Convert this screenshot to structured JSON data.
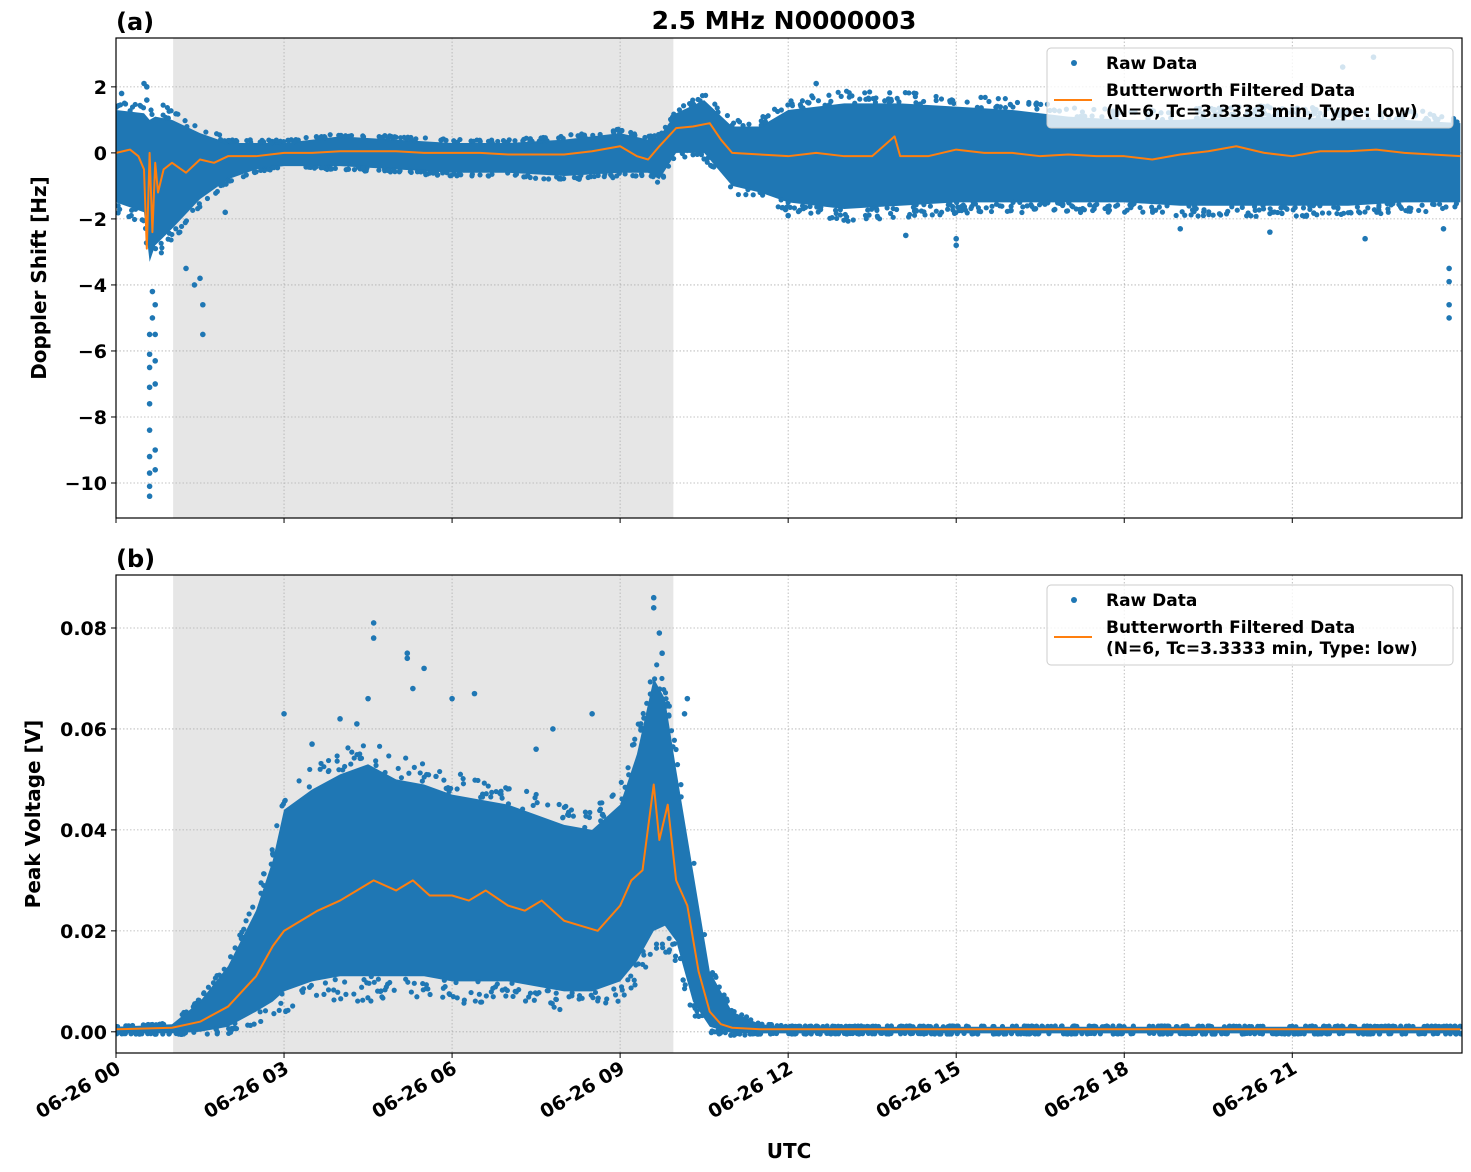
{
  "title": "2.5 MHz N0000003",
  "xlabel": "UTC",
  "x_tick_labels": [
    "06-26 00",
    "06-26 03",
    "06-26 06",
    "06-26 09",
    "06-26 12",
    "06-26 15",
    "06-26 18",
    "06-26 21"
  ],
  "x_tick_hours": [
    0,
    3,
    6,
    9,
    12,
    15,
    18,
    21
  ],
  "colors": {
    "raw": "#1f77b4",
    "filtered": "#ff7f0e",
    "shade": "#e6e6e6"
  },
  "legend": {
    "raw_label": "Raw Data",
    "filtered_label_line1": "Butterworth Filtered Data",
    "filtered_label_line2": "(N=6, Tc=3.3333 min, Type: low)"
  },
  "chart_data": [
    {
      "panel_label": "(a)",
      "type": "scatter+line",
      "ylabel": "Doppler Shift [Hz]",
      "xlim_hours": [
        0,
        24.03
      ],
      "ylim": [
        -11.06,
        3.48
      ],
      "yticks": [
        2,
        0,
        -2,
        -4,
        -6,
        -8,
        -10
      ],
      "ytick_labels": [
        "2",
        "0",
        "−2",
        "−4",
        "−6",
        "−8",
        "−10"
      ],
      "grid": true,
      "legend_position": "top-right",
      "shaded_interval_hours": [
        1.02,
        9.95
      ],
      "filtered": {
        "x": [
          0,
          0.25,
          0.4,
          0.5,
          0.55,
          0.6,
          0.65,
          0.7,
          0.75,
          0.85,
          1,
          1.25,
          1.5,
          1.75,
          2,
          2.5,
          3,
          3.5,
          4,
          4.5,
          5,
          5.5,
          6,
          6.5,
          7,
          7.5,
          8,
          8.5,
          9,
          9.3,
          9.5,
          9.7,
          10,
          10.3,
          10.6,
          10.8,
          11,
          11.5,
          12,
          12.5,
          13,
          13.5,
          13.9,
          14,
          14.5,
          15,
          15.5,
          16,
          16.5,
          17,
          17.5,
          18,
          18.5,
          19,
          19.5,
          20,
          20.5,
          21,
          21.5,
          22,
          22.5,
          23,
          23.5,
          24
        ],
        "y": [
          0,
          0.1,
          -0.1,
          -0.5,
          -2.9,
          0,
          -2.4,
          -0.3,
          -1.2,
          -0.5,
          -0.3,
          -0.6,
          -0.2,
          -0.3,
          -0.1,
          -0.1,
          0,
          0,
          0.05,
          0.05,
          0.05,
          0,
          0,
          0,
          -0.05,
          -0.05,
          -0.05,
          0.05,
          0.2,
          -0.1,
          -0.2,
          0.2,
          0.75,
          0.8,
          0.9,
          0.4,
          0,
          -0.05,
          -0.1,
          0,
          -0.1,
          -0.1,
          0.5,
          -0.1,
          -0.1,
          0.1,
          0,
          0,
          -0.1,
          -0.05,
          -0.1,
          -0.1,
          -0.2,
          -0.05,
          0.05,
          0.2,
          0,
          -0.1,
          0.05,
          0.05,
          0.1,
          0,
          -0.05,
          -0.1
        ]
      },
      "raw_envelope": {
        "x": [
          0,
          0.5,
          0.6,
          0.7,
          1,
          1.5,
          2,
          2.5,
          3,
          4,
          5,
          6,
          7,
          8,
          9,
          9.5,
          9.7,
          10,
          10.5,
          11,
          11.5,
          12,
          13,
          14,
          15,
          16,
          17,
          18,
          19,
          20,
          21,
          22,
          23,
          24
        ],
        "upper": [
          1.3,
          1.2,
          1.0,
          1.1,
          1.0,
          0.6,
          0.3,
          0.3,
          0.3,
          0.5,
          0.4,
          0.3,
          0.3,
          0.4,
          0.6,
          0.4,
          0.5,
          1.2,
          1.6,
          0.8,
          0.8,
          1.3,
          1.5,
          1.5,
          1.4,
          1.3,
          1.1,
          1.0,
          1.0,
          1.1,
          1.1,
          1.0,
          1.0,
          0.9
        ],
        "lower": [
          -1.5,
          -1.8,
          -3.3,
          -2.8,
          -2.3,
          -1.4,
          -0.8,
          -0.5,
          -0.4,
          -0.4,
          -0.5,
          -0.6,
          -0.6,
          -0.7,
          -0.6,
          -0.6,
          -0.8,
          0,
          0,
          -1.0,
          -1.2,
          -1.5,
          -1.7,
          -1.6,
          -1.5,
          -1.5,
          -1.5,
          -1.5,
          -1.6,
          -1.6,
          -1.6,
          -1.6,
          -1.5,
          -1.5
        ]
      },
      "raw_outliers": [
        [
          0.6,
          -10.4
        ],
        [
          0.6,
          -10.1
        ],
        [
          0.6,
          -9.7
        ],
        [
          0.6,
          -9.2
        ],
        [
          0.6,
          -8.4
        ],
        [
          0.6,
          -7.6
        ],
        [
          0.6,
          -7.1
        ],
        [
          0.6,
          -6.5
        ],
        [
          0.6,
          -6.1
        ],
        [
          0.6,
          -5.5
        ],
        [
          0.65,
          -5.0
        ],
        [
          0.7,
          -9.0
        ],
        [
          0.7,
          -9.6
        ],
        [
          0.7,
          -7.0
        ],
        [
          0.7,
          -6.3
        ],
        [
          0.7,
          -5.5
        ],
        [
          0.7,
          -4.6
        ],
        [
          0.65,
          -4.2
        ],
        [
          0.55,
          2.0
        ],
        [
          0.55,
          1.6
        ],
        [
          0.1,
          1.8
        ],
        [
          1.55,
          -5.5
        ],
        [
          1.55,
          -4.6
        ],
        [
          1.5,
          -3.8
        ],
        [
          1.4,
          -4.0
        ],
        [
          1.25,
          -3.5
        ],
        [
          1.95,
          -1.8
        ],
        [
          0.5,
          2.1
        ],
        [
          12.0,
          -1.9
        ],
        [
          12.5,
          2.1
        ],
        [
          14.1,
          -2.5
        ],
        [
          15.0,
          -2.8
        ],
        [
          15.0,
          -2.6
        ],
        [
          19.0,
          -2.3
        ],
        [
          21.9,
          2.6
        ],
        [
          22.3,
          -2.6
        ],
        [
          22.45,
          2.9
        ],
        [
          23.8,
          -3.5
        ],
        [
          23.8,
          -3.9
        ],
        [
          23.8,
          -4.6
        ],
        [
          23.8,
          -5.0
        ],
        [
          23.7,
          -2.3
        ],
        [
          20.6,
          -2.4
        ]
      ]
    },
    {
      "panel_label": "(b)",
      "type": "scatter+line",
      "ylabel": "Peak Voltage [V]",
      "xlim_hours": [
        0,
        24.03
      ],
      "ylim": [
        -0.0042,
        0.0905
      ],
      "yticks": [
        0.08,
        0.06,
        0.04,
        0.02,
        0.0
      ],
      "ytick_labels": [
        "0.08",
        "0.06",
        "0.04",
        "0.02",
        "0.00"
      ],
      "grid": true,
      "legend_position": "top-right",
      "shaded_interval_hours": [
        1.02,
        9.95
      ],
      "filtered": {
        "x": [
          0,
          1,
          1.5,
          2,
          2.5,
          2.8,
          3,
          3.3,
          3.6,
          4,
          4.3,
          4.6,
          5,
          5.3,
          5.6,
          6,
          6.3,
          6.6,
          7,
          7.3,
          7.6,
          8,
          8.3,
          8.6,
          9,
          9.2,
          9.4,
          9.6,
          9.7,
          9.85,
          10,
          10.2,
          10.4,
          10.6,
          10.8,
          11,
          11.5,
          12,
          24
        ],
        "y": [
          0.0005,
          0.0008,
          0.002,
          0.005,
          0.011,
          0.017,
          0.02,
          0.022,
          0.024,
          0.026,
          0.028,
          0.03,
          0.028,
          0.03,
          0.027,
          0.027,
          0.026,
          0.028,
          0.025,
          0.024,
          0.026,
          0.022,
          0.021,
          0.02,
          0.025,
          0.03,
          0.032,
          0.049,
          0.038,
          0.045,
          0.03,
          0.025,
          0.012,
          0.004,
          0.0015,
          0.0008,
          0.0005,
          0.0005,
          0.0005
        ]
      },
      "raw_envelope": {
        "x": [
          0,
          1,
          1.5,
          2,
          2.5,
          2.8,
          3,
          3.5,
          4,
          4.5,
          5,
          5.5,
          6,
          6.5,
          7,
          7.5,
          8,
          8.5,
          9,
          9.3,
          9.6,
          9.8,
          10,
          10.3,
          10.6,
          11,
          11.5,
          12,
          24
        ],
        "upper": [
          0.001,
          0.0015,
          0.006,
          0.013,
          0.024,
          0.034,
          0.044,
          0.048,
          0.051,
          0.053,
          0.05,
          0.049,
          0.047,
          0.046,
          0.045,
          0.043,
          0.041,
          0.04,
          0.045,
          0.055,
          0.07,
          0.066,
          0.052,
          0.032,
          0.012,
          0.004,
          0.0015,
          0.001,
          0.001
        ],
        "lower": [
          -0.0003,
          -0.0003,
          0,
          0.001,
          0.004,
          0.006,
          0.008,
          0.01,
          0.011,
          0.011,
          0.011,
          0.011,
          0.01,
          0.01,
          0.01,
          0.009,
          0.008,
          0.008,
          0.01,
          0.014,
          0.02,
          0.021,
          0.018,
          0.006,
          0.001,
          -0.0003,
          -0.0003,
          -0.0003,
          -0.0003
        ]
      },
      "raw_outliers": [
        [
          4.6,
          0.081
        ],
        [
          4.6,
          0.078
        ],
        [
          5.2,
          0.075
        ],
        [
          5.2,
          0.074
        ],
        [
          5.5,
          0.072
        ],
        [
          5.3,
          0.068
        ],
        [
          4.5,
          0.066
        ],
        [
          6.4,
          0.067
        ],
        [
          3.0,
          0.063
        ],
        [
          8.5,
          0.063
        ],
        [
          7.8,
          0.06
        ],
        [
          9.6,
          0.086
        ],
        [
          9.6,
          0.084
        ],
        [
          9.7,
          0.079
        ],
        [
          10.2,
          0.066
        ],
        [
          10.15,
          0.063
        ],
        [
          6.0,
          0.066
        ],
        [
          4.0,
          0.062
        ],
        [
          4.3,
          0.061
        ],
        [
          7.5,
          0.056
        ],
        [
          3.5,
          0.057
        ],
        [
          9.75,
          0.075
        ]
      ]
    }
  ]
}
